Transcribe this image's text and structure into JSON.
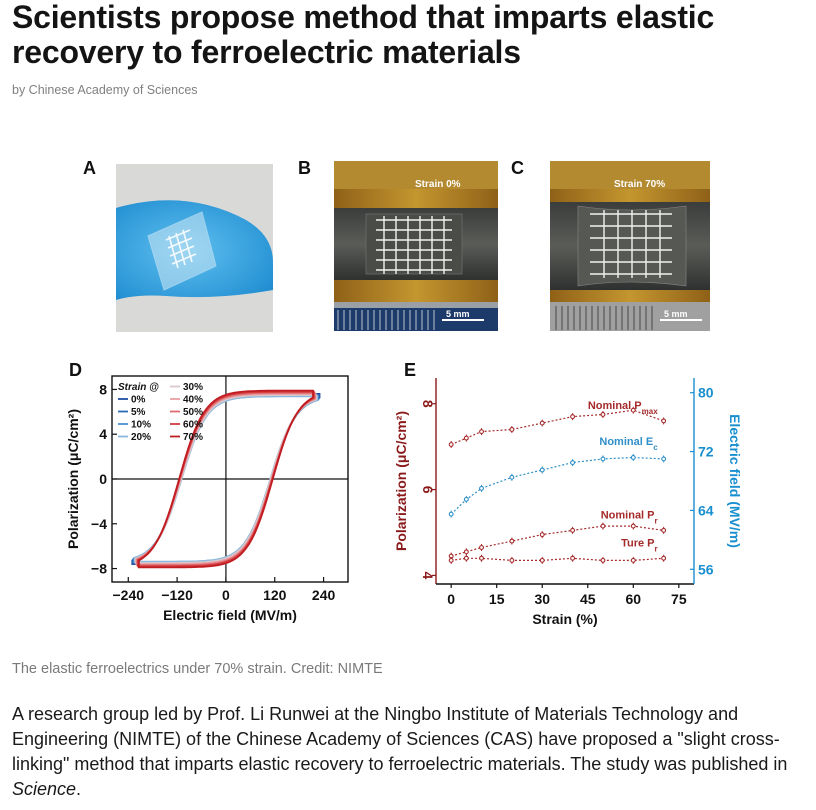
{
  "article": {
    "title": "Scientists propose method that imparts elastic recovery to ferroelectric materials",
    "byline": "by Chinese Academy of Sciences",
    "caption": "The elastic ferroelectrics under 70% strain. Credit: NIMTE",
    "body_before": "A research group led by Prof. Li Runwei at the Ningbo Institute of Materials Technology and Engineering (NIMTE) of the Chinese Academy of Sciences (CAS) have proposed a \"slight cross-linking\" method that imparts elastic recovery to ferroelectric materials. The study was published in ",
    "body_journal": "Science",
    "body_after": "."
  },
  "figure": {
    "panel_labels": [
      "A",
      "B",
      "C",
      "D",
      "E"
    ],
    "photo_b_label": "Strain 0%",
    "photo_c_label": "Strain 70%",
    "scale_bar_b": "5 mm",
    "scale_bar_c": "5 mm",
    "colors": {
      "skin_blue": "#3aa8e0",
      "wood": "#b98a2c",
      "red": "#d62728",
      "blue": "#1f77b4",
      "teal_axis": "#1a8fcf"
    }
  },
  "chart_data": [
    {
      "type": "line",
      "panel": "D",
      "xlabel": "Electric field (MV/m)",
      "ylabel": "Polarization (μC/cm²)",
      "xlim": [
        -280,
        300
      ],
      "ylim": [
        -9.2,
        9.2
      ],
      "xticks": [
        "−240",
        "−120",
        "0",
        "120",
        "240"
      ],
      "yticks": [
        "8",
        "4",
        "0",
        "−4",
        "−8"
      ],
      "legend_title": "Strain @",
      "legend": [
        "0%",
        "5%",
        "10%",
        "20%",
        "30%",
        "40%",
        "50%",
        "60%",
        "70%"
      ],
      "series": [
        {
          "name": "0%",
          "color": "#1f4fa0",
          "Ps": 8.0,
          "Ec": 112,
          "Emax": 230,
          "Pmax": 7.6
        },
        {
          "name": "5%",
          "color": "#2a6cb8",
          "Ps": 7.9,
          "Ec": 111,
          "Emax": 228,
          "Pmax": 7.5
        },
        {
          "name": "10%",
          "color": "#4b8fcf",
          "Ps": 7.8,
          "Ec": 110,
          "Emax": 226,
          "Pmax": 7.4
        },
        {
          "name": "20%",
          "color": "#8cb8dd",
          "Ps": 7.8,
          "Ec": 109,
          "Emax": 224,
          "Pmax": 7.4
        },
        {
          "name": "30%",
          "color": "#d8c8cc",
          "Ps": 7.9,
          "Ec": 110,
          "Emax": 222,
          "Pmax": 7.5
        },
        {
          "name": "40%",
          "color": "#e7a0a3",
          "Ps": 8.0,
          "Ec": 112,
          "Emax": 220,
          "Pmax": 7.6
        },
        {
          "name": "50%",
          "color": "#e06b6e",
          "Ps": 8.1,
          "Ec": 113,
          "Emax": 218,
          "Pmax": 7.7
        },
        {
          "name": "60%",
          "color": "#d43a3e",
          "Ps": 8.2,
          "Ec": 114,
          "Emax": 216,
          "Pmax": 7.8
        },
        {
          "name": "70%",
          "color": "#c01d22",
          "Ps": 8.3,
          "Ec": 115,
          "Emax": 214,
          "Pmax": 7.9
        }
      ]
    },
    {
      "type": "line",
      "panel": "E",
      "xlabel": "Strain (%)",
      "ylabel_left": "Polarization (μC/cm²)",
      "ylabel_right": "Electric field (MV/m)",
      "xlim": [
        -5,
        80
      ],
      "ylim_left": [
        3.8,
        8.6
      ],
      "ylim_right": [
        54,
        82
      ],
      "xticks": [
        0,
        15,
        30,
        45,
        60,
        75
      ],
      "yticks_left": [
        4,
        6,
        8
      ],
      "yticks_right": [
        56,
        64,
        72,
        80
      ],
      "x": [
        0,
        5,
        10,
        20,
        30,
        40,
        50,
        60,
        70
      ],
      "series": [
        {
          "name": "Nominal P",
          "sub": "max",
          "axis": "left",
          "color": "#a52a2a",
          "values": [
            7.05,
            7.2,
            7.35,
            7.4,
            7.55,
            7.7,
            7.75,
            7.85,
            7.6
          ]
        },
        {
          "name": "Nominal E",
          "sub": "c",
          "axis": "right",
          "color": "#2f8fc8",
          "values": [
            63.5,
            65.5,
            67.0,
            68.5,
            69.5,
            70.5,
            71.0,
            71.2,
            71.0
          ]
        },
        {
          "name": "Nominal P",
          "sub": "r",
          "axis": "left",
          "color": "#a52a2a",
          "values": [
            4.45,
            4.55,
            4.65,
            4.8,
            4.95,
            5.05,
            5.15,
            5.15,
            5.05
          ]
        },
        {
          "name": "Ture P",
          "sub": "r",
          "axis": "left",
          "color": "#a52a2a",
          "values": [
            4.35,
            4.4,
            4.4,
            4.35,
            4.35,
            4.4,
            4.35,
            4.35,
            4.4
          ]
        }
      ]
    }
  ]
}
